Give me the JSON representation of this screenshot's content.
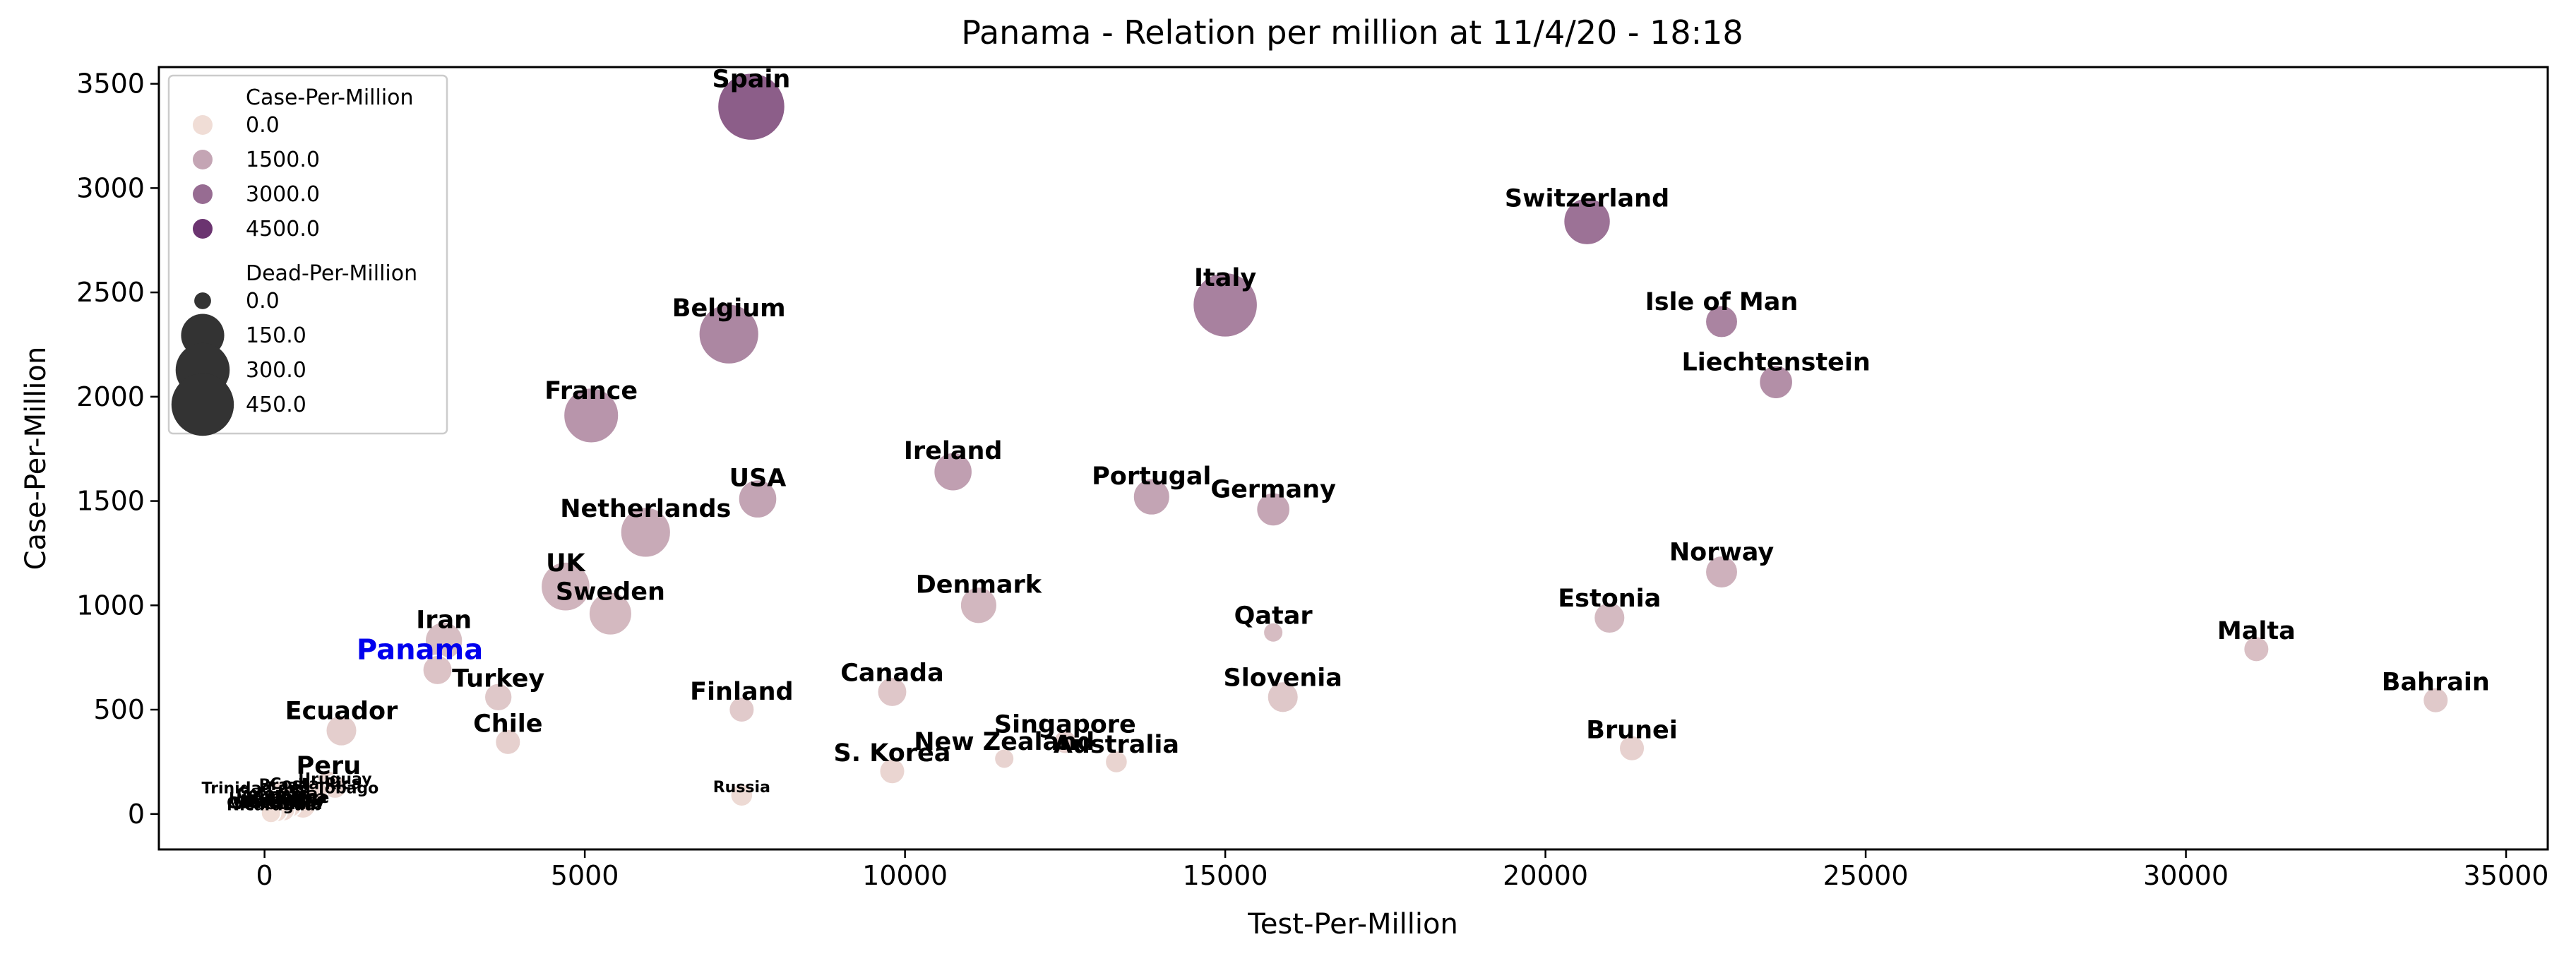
{
  "chart_data": {
    "type": "scatter",
    "title": "Panama - Relation per million at 11/4/20 - 18:18",
    "xlabel": "Test-Per-Million",
    "ylabel": "Case-Per-Million",
    "xlim": [
      -1650,
      35650
    ],
    "ylim": [
      -170,
      3580
    ],
    "xticks": [
      0,
      5000,
      10000,
      15000,
      20000,
      25000,
      30000,
      35000
    ],
    "yticks": [
      0,
      500,
      1000,
      1500,
      2000,
      2500,
      3000,
      3500
    ],
    "xtick_labels": [
      "0",
      "5000",
      "10000",
      "15000",
      "20000",
      "25000",
      "30000",
      "35000"
    ],
    "ytick_labels": [
      "0",
      "500",
      "1000",
      "1500",
      "2000",
      "2500",
      "3000",
      "3500"
    ],
    "grid": false,
    "hue_variable": "Case-Per-Million",
    "size_variable": "Dead-Per-Million",
    "colors": {
      "hue_low": "#f0ddd6",
      "hue_high": "#6b3470",
      "size_legend_marker": "#333333",
      "highlight_label": "#0000ee"
    },
    "legend": {
      "placement": "top-left",
      "hue_title": "Case-Per-Million",
      "hue_entries": [
        {
          "label": "0.0",
          "value": 0
        },
        {
          "label": "1500.0",
          "value": 1500
        },
        {
          "label": "3000.0",
          "value": 3000
        },
        {
          "label": "4500.0",
          "value": 4500
        }
      ],
      "size_title": "Dead-Per-Million",
      "size_entries": [
        {
          "label": "0.0",
          "value": 0
        },
        {
          "label": "150.0",
          "value": 150
        },
        {
          "label": "300.0",
          "value": 300
        },
        {
          "label": "450.0",
          "value": 450
        }
      ]
    },
    "highlight": "Panama",
    "points": [
      {
        "label": "Spain",
        "x": 7600,
        "y": 3390,
        "dead": 355,
        "label_style": "big"
      },
      {
        "label": "Switzerland",
        "x": 20650,
        "y": 2840,
        "dead": 115,
        "label_style": "big"
      },
      {
        "label": "Italy",
        "x": 15000,
        "y": 2440,
        "dead": 315,
        "label_style": "big"
      },
      {
        "label": "Isle of Man",
        "x": 22750,
        "y": 2360,
        "dead": 25,
        "label_style": "big"
      },
      {
        "label": "Belgium",
        "x": 7250,
        "y": 2300,
        "dead": 255,
        "label_style": "big"
      },
      {
        "label": "Liechtenstein",
        "x": 23600,
        "y": 2070,
        "dead": 30,
        "label_style": "big"
      },
      {
        "label": "France",
        "x": 5100,
        "y": 1910,
        "dead": 195,
        "label_style": "big"
      },
      {
        "label": "Ireland",
        "x": 10750,
        "y": 1640,
        "dead": 55,
        "label_style": "big"
      },
      {
        "label": "USA",
        "x": 7700,
        "y": 1510,
        "dead": 55,
        "label_style": "big"
      },
      {
        "label": "Portugal",
        "x": 13850,
        "y": 1520,
        "dead": 45,
        "label_style": "big"
      },
      {
        "label": "Germany",
        "x": 15750,
        "y": 1460,
        "dead": 30,
        "label_style": "big"
      },
      {
        "label": "Netherlands",
        "x": 5950,
        "y": 1350,
        "dead": 145,
        "label_style": "big"
      },
      {
        "label": "Norway",
        "x": 22750,
        "y": 1160,
        "dead": 25,
        "label_style": "big"
      },
      {
        "label": "UK",
        "x": 4700,
        "y": 1090,
        "dead": 135,
        "label_style": "big"
      },
      {
        "label": "Denmark",
        "x": 11150,
        "y": 1000,
        "dead": 45,
        "label_style": "big"
      },
      {
        "label": "Sweden",
        "x": 5400,
        "y": 960,
        "dead": 85,
        "label_style": "big"
      },
      {
        "label": "Estonia",
        "x": 21000,
        "y": 940,
        "dead": 20,
        "label_style": "big"
      },
      {
        "label": "Qatar",
        "x": 15750,
        "y": 870,
        "dead": 0,
        "label_style": "big"
      },
      {
        "label": "Iran",
        "x": 2800,
        "y": 830,
        "dead": 50,
        "label_style": "big"
      },
      {
        "label": "Malta",
        "x": 31100,
        "y": 790,
        "dead": 5,
        "label_style": "big"
      },
      {
        "label": "Panama",
        "x": 2700,
        "y": 690,
        "dead": 15,
        "label_style": "highlight"
      },
      {
        "label": "Canada",
        "x": 9800,
        "y": 585,
        "dead": 15,
        "label_style": "big"
      },
      {
        "label": "Slovenia",
        "x": 15900,
        "y": 560,
        "dead": 20,
        "label_style": "big"
      },
      {
        "label": "Turkey",
        "x": 3650,
        "y": 560,
        "dead": 10,
        "label_style": "big"
      },
      {
        "label": "Bahrain",
        "x": 33900,
        "y": 545,
        "dead": 5,
        "label_style": "big"
      },
      {
        "label": "Finland",
        "x": 7450,
        "y": 500,
        "dead": 5,
        "label_style": "big"
      },
      {
        "label": "Ecuador",
        "x": 1200,
        "y": 400,
        "dead": 20,
        "label_style": "big"
      },
      {
        "label": "Chile",
        "x": 3800,
        "y": 345,
        "dead": 5,
        "label_style": "big"
      },
      {
        "label": "Brunei",
        "x": 21350,
        "y": 315,
        "dead": 5,
        "label_style": "big"
      },
      {
        "label": "Singapore",
        "x": 12500,
        "y": 345,
        "dead": 2,
        "label_style": "big"
      },
      {
        "label": "New Zealand",
        "x": 11550,
        "y": 265,
        "dead": 0,
        "label_style": "big"
      },
      {
        "label": "Australia",
        "x": 13300,
        "y": 250,
        "dead": 1,
        "label_style": "big"
      },
      {
        "label": "S. Korea",
        "x": 9800,
        "y": 205,
        "dead": 5,
        "label_style": "big"
      },
      {
        "label": "Peru",
        "x": 1000,
        "y": 145,
        "dead": 5,
        "label_style": "big"
      },
      {
        "label": "Uruguay",
        "x": 1100,
        "y": 130,
        "dead": 2,
        "label_style": "small"
      },
      {
        "label": "Costa Rica",
        "x": 800,
        "y": 105,
        "dead": 2,
        "label_style": "small"
      },
      {
        "label": "Trinidad and Tobago",
        "x": 400,
        "y": 85,
        "dead": 3,
        "label_style": "small"
      },
      {
        "label": "Russia",
        "x": 7450,
        "y": 90,
        "dead": 1,
        "label_style": "small"
      },
      {
        "label": "Brazil",
        "x": 300,
        "y": 100,
        "dead": 5,
        "label_style": "small"
      },
      {
        "label": "Colombia",
        "x": 200,
        "y": 60,
        "dead": 1,
        "label_style": "small"
      },
      {
        "label": "Argentina",
        "x": 300,
        "y": 45,
        "dead": 2,
        "label_style": "small"
      },
      {
        "label": "Mexico",
        "x": 100,
        "y": 25,
        "dead": 1,
        "label_style": "small"
      },
      {
        "label": "Bolivia",
        "x": 200,
        "y": 20,
        "dead": 1,
        "label_style": "small"
      },
      {
        "label": "Guatemala",
        "x": 150,
        "y": 15,
        "dead": 0,
        "label_style": "small"
      },
      {
        "label": "Paraguay",
        "x": 300,
        "y": 20,
        "dead": 1,
        "label_style": "small"
      },
      {
        "label": "Venezuela",
        "x": 200,
        "y": 10,
        "dead": 0,
        "label_style": "small"
      },
      {
        "label": "Honduras",
        "x": 100,
        "y": 35,
        "dead": 2,
        "label_style": "small"
      },
      {
        "label": "Cuba",
        "x": 400,
        "y": 40,
        "dead": 2,
        "label_style": "small"
      },
      {
        "label": "Belize",
        "x": 600,
        "y": 40,
        "dead": 5,
        "label_style": "small"
      },
      {
        "label": "Nicaragua",
        "x": 100,
        "y": 5,
        "dead": 0,
        "label_style": "small"
      }
    ]
  }
}
